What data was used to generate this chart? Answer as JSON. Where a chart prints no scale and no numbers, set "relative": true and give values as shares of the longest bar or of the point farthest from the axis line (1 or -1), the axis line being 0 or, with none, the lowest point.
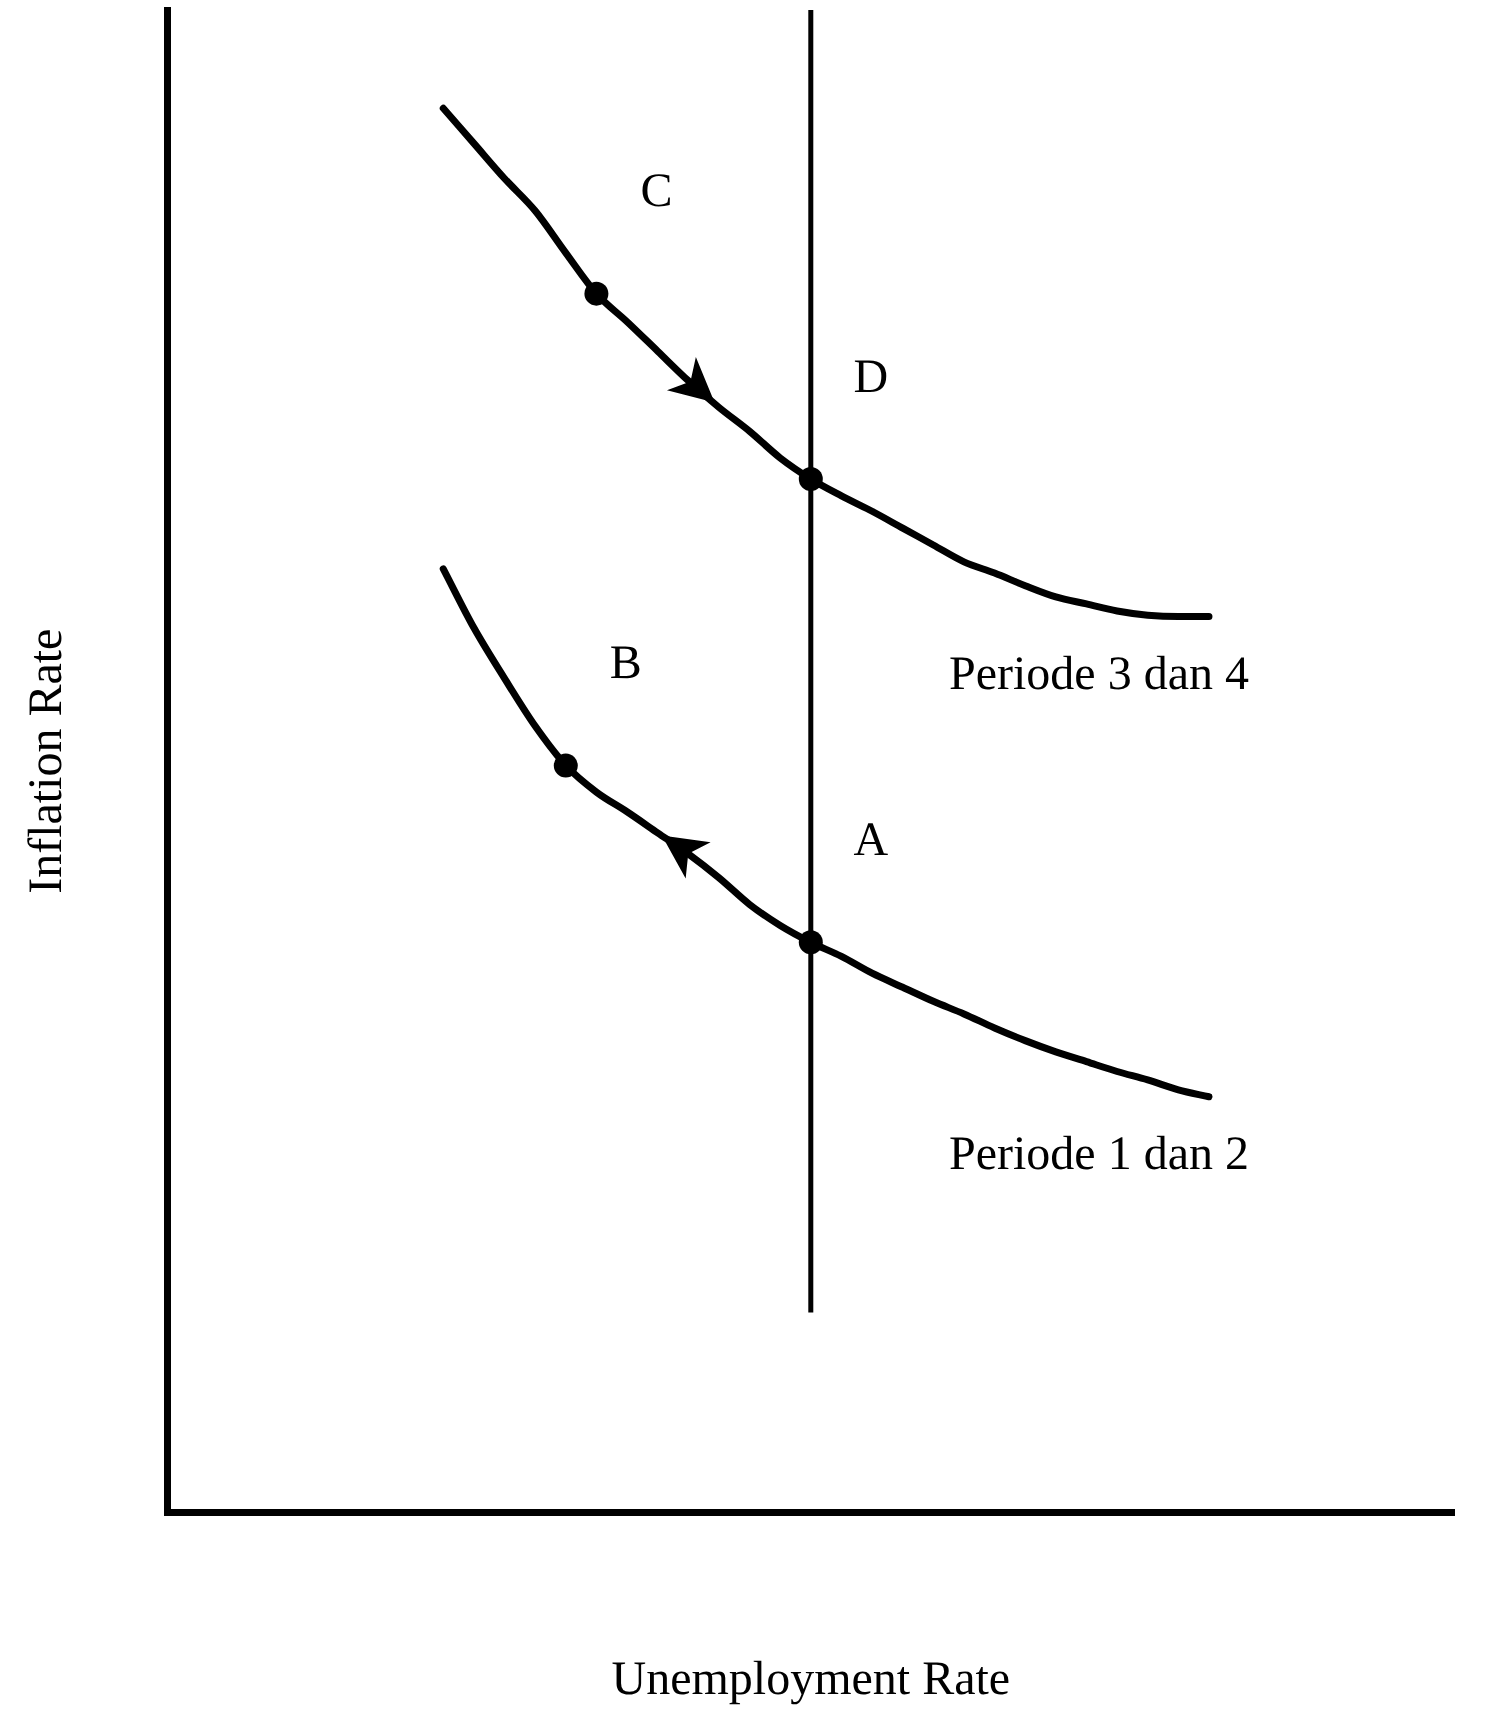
{
  "chart_data": {
    "type": "line",
    "relative": true,
    "xlabel": "Unemployment Rate",
    "ylabel": "Inflation Rate",
    "legend": false,
    "grid": false,
    "tick_labels": false,
    "categories": [
      null,
      null,
      null,
      null,
      null,
      null,
      null,
      null,
      null,
      null,
      null,
      null,
      null,
      null,
      null,
      null,
      null,
      null,
      null,
      null,
      null,
      null,
      null,
      null,
      null,
      null,
      null,
      null,
      null,
      null,
      null,
      null,
      null,
      null,
      null,
      null,
      null,
      null,
      null,
      null,
      null,
      null,
      null
    ],
    "annotations": [
      "C",
      "D",
      "B",
      "A"
    ],
    "series": [
      {
        "name": "Periode 3 dan 4",
        "color": "#000000",
        "values": [
          null,
          null,
          null,
          null,
          null,
          null,
          null,
          null,
          null,
          1.0,
          0.975,
          0.95,
          0.927,
          0.897,
          0.868,
          0.848,
          0.827,
          0.806,
          0.787,
          0.77,
          0.751,
          0.736,
          0.724,
          0.713,
          0.701,
          0.689,
          0.677,
          0.669,
          0.66,
          0.652,
          0.647,
          0.642,
          0.639,
          0.638,
          0.638,
          null,
          null,
          null,
          null,
          null,
          null,
          null,
          null
        ]
      },
      {
        "name": "Periode 1 dan 2",
        "color": "#000000",
        "values": [
          null,
          null,
          null,
          null,
          null,
          null,
          null,
          null,
          null,
          0.672,
          0.63,
          0.594,
          0.56,
          0.532,
          0.513,
          0.499,
          0.484,
          0.469,
          0.452,
          0.433,
          0.418,
          0.406,
          0.396,
          0.384,
          0.374,
          0.364,
          0.355,
          0.345,
          0.336,
          0.328,
          0.321,
          0.314,
          0.308,
          0.301,
          0.296,
          null,
          null,
          null,
          null,
          null,
          null,
          null,
          null
        ]
      }
    ]
  }
}
